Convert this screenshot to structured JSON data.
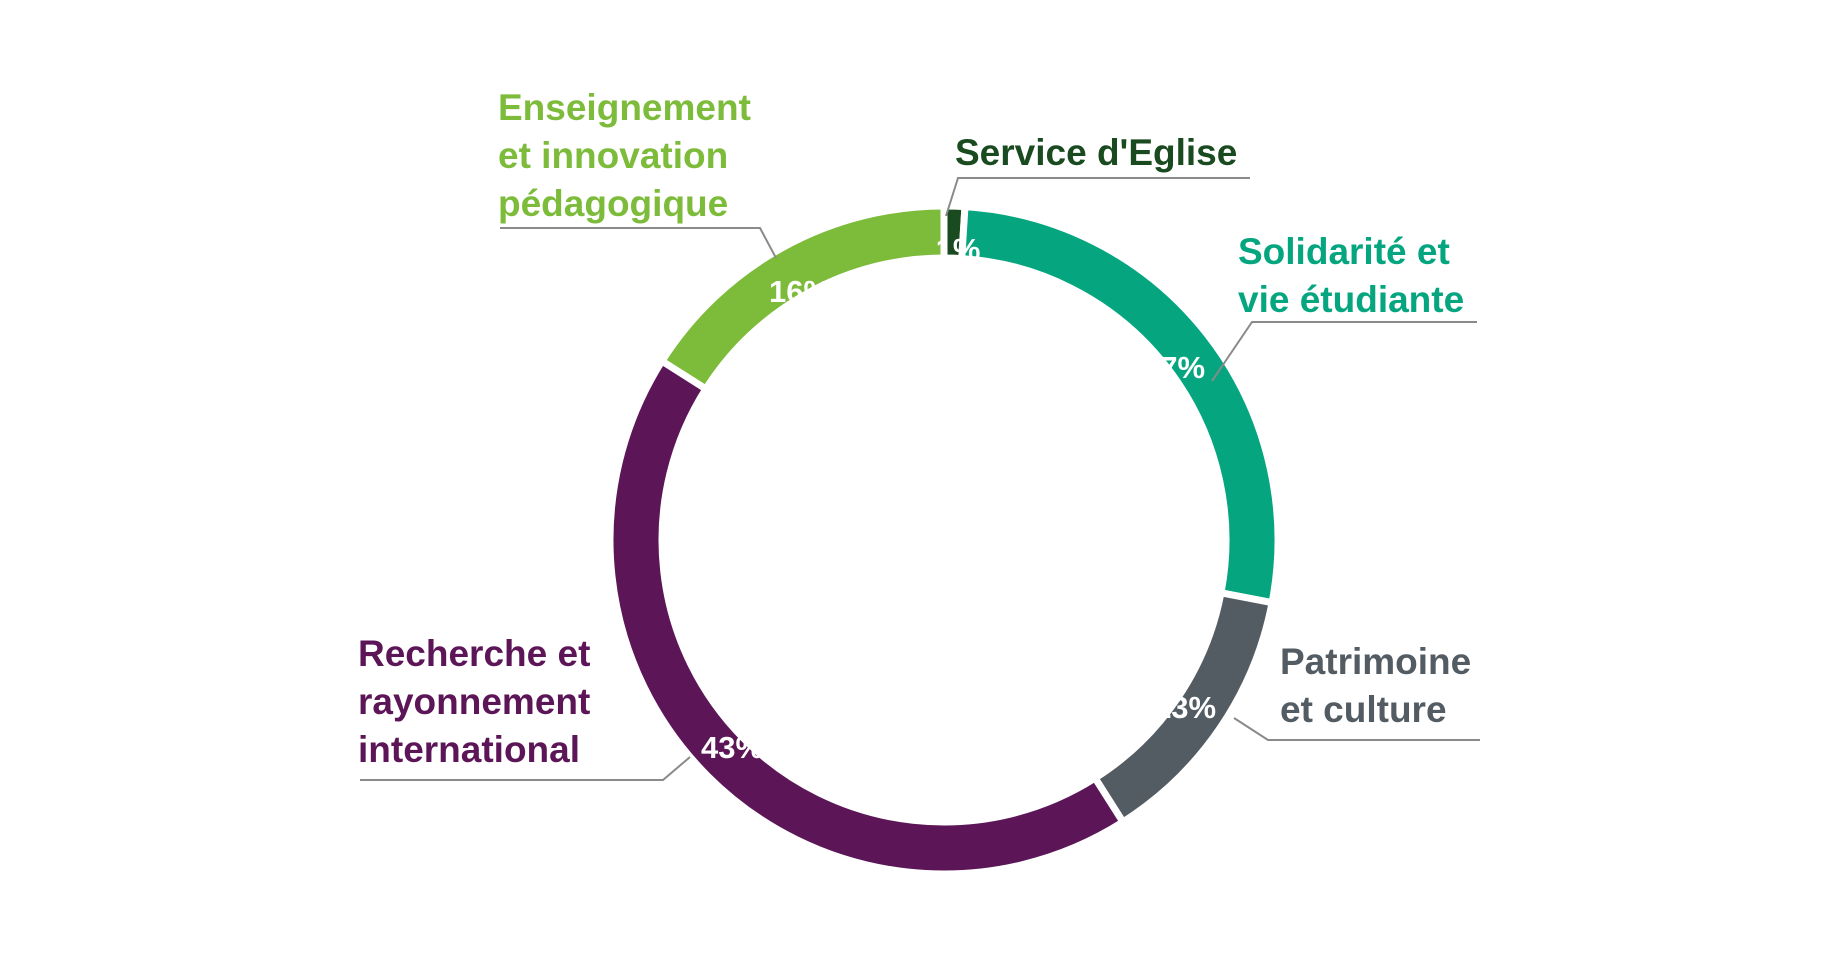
{
  "chart_data": {
    "type": "pie",
    "style": "donut",
    "start": "top",
    "direction": "clockwise",
    "slices": [
      {
        "label": "Service d'Eglise",
        "value": 1,
        "value_label": "1%",
        "color": "#1a4a1f",
        "value_label_color": "#ffffff"
      },
      {
        "label": "Solidarité et vie étudiante",
        "value": 27,
        "value_label": "27%",
        "color": "#05a67f",
        "value_label_color": "#ffffff"
      },
      {
        "label": "Patrimoine et culture",
        "value": 13,
        "value_label": "13%",
        "color": "#545c63",
        "value_label_color": "#ffffff"
      },
      {
        "label": "Recherche et rayonnement international",
        "value": 43,
        "value_label": "43%",
        "color": "#5c1657",
        "value_label_color": "#ffffff"
      },
      {
        "label": "Enseignement et innovation pédagogique",
        "value": 16,
        "value_label": "16%",
        "color": "#7dbb3a",
        "value_label_color": "#ffffff"
      }
    ],
    "category_labels": [
      {
        "lines": [
          "Service d'Eglise"
        ],
        "color": "#1a4a1f"
      },
      {
        "lines": [
          "Solidarité et",
          "vie étudiante"
        ],
        "color": "#05a67f"
      },
      {
        "lines": [
          "Patrimoine",
          "et culture"
        ],
        "color": "#545c63"
      },
      {
        "lines": [
          "Recherche et",
          "rayonnement",
          "international"
        ],
        "color": "#5c1657"
      },
      {
        "lines": [
          "Enseignement",
          "et innovation",
          "pédagogique"
        ],
        "color": "#7dbb3a"
      }
    ]
  }
}
